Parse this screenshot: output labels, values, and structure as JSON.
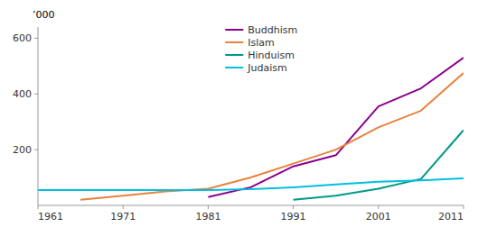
{
  "chart_data": {
    "type": "line",
    "ylabel": "’000",
    "x": [
      1961,
      1966,
      1971,
      1976,
      1981,
      1986,
      1991,
      1996,
      2001,
      2006,
      2011
    ],
    "series": [
      {
        "name": "Buddhism",
        "color": "#8b008b",
        "values": [
          null,
          null,
          null,
          null,
          30,
          65,
          140,
          180,
          355,
          420,
          530
        ]
      },
      {
        "name": "Islam",
        "color": "#e8823e",
        "values": [
          null,
          20,
          35,
          50,
          60,
          100,
          150,
          200,
          280,
          340,
          475
        ]
      },
      {
        "name": "Hinduism",
        "color": "#009988",
        "values": [
          null,
          null,
          null,
          null,
          null,
          null,
          20,
          35,
          60,
          95,
          270
        ]
      },
      {
        "name": "Judaism",
        "color": "#00bfdf",
        "values": [
          55,
          55,
          55,
          55,
          55,
          58,
          65,
          75,
          85,
          90,
          97
        ]
      }
    ],
    "xlim": [
      1961,
      2011
    ],
    "ylim": [
      0,
      640
    ],
    "xticks": [
      1961,
      1971,
      1981,
      1991,
      2001,
      2011
    ],
    "yticks": [
      200,
      400,
      600
    ],
    "grid": false,
    "legend": "upper center"
  }
}
